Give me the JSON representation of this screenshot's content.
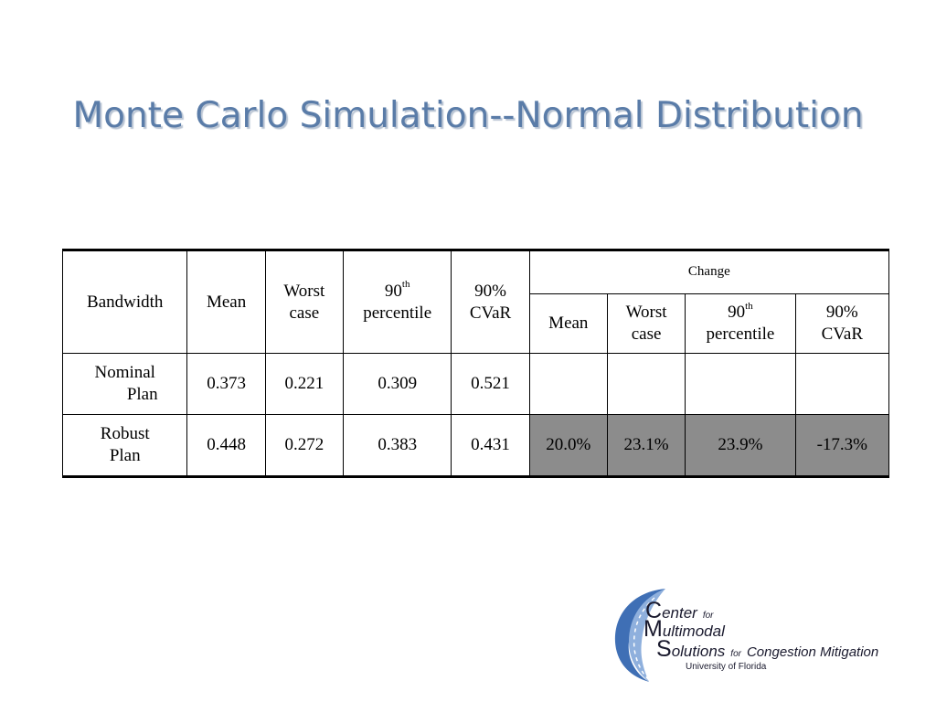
{
  "slide": {
    "title": "Monte Carlo Simulation--Normal Distribution"
  },
  "table": {
    "header": {
      "bandwidth": "Bandwidth",
      "mean": "Mean",
      "worst_line1": "Worst",
      "worst_line2": "case",
      "p90_base": "90",
      "p90_sup": "th",
      "p90_line2": "percentile",
      "cvar_line1": "90%",
      "cvar_line2": "CVaR",
      "change": "Change",
      "change_mean": "Mean",
      "change_worst_line1": "Worst",
      "change_worst_line2": "case",
      "change_p90_base": "90",
      "change_p90_sup": "th",
      "change_p90_line2": "percentile",
      "change_cvar_line1": "90%",
      "change_cvar_line2": "CVaR"
    },
    "rows": [
      {
        "label_line1": "Nominal",
        "label_line2": "Plan",
        "mean": "0.373",
        "worst": "0.221",
        "p90": "0.309",
        "cvar": "0.521",
        "change_mean": "",
        "change_worst": "",
        "change_p90": "",
        "change_cvar": ""
      },
      {
        "label_line1": "Robust",
        "label_line2": "Plan",
        "mean": "0.448",
        "worst": "0.272",
        "p90": "0.383",
        "cvar": "0.431",
        "change_mean": "20.0%",
        "change_worst": "23.1%",
        "change_p90": "23.9%",
        "change_cvar": "-17.3%"
      }
    ],
    "colors": {
      "shaded_cell": "#8c8c8c",
      "title": "#5a7ca8"
    }
  },
  "logo": {
    "line1_initial": "C",
    "line1_rest": "enter",
    "line1_small": "for",
    "line2_initial": "M",
    "line2_rest": "ultimodal",
    "line3_initial": "S",
    "line3_rest": "olutions",
    "line3_small": "for",
    "line3_tail": "Congestion Mitigation",
    "line4": "University of Florida"
  }
}
